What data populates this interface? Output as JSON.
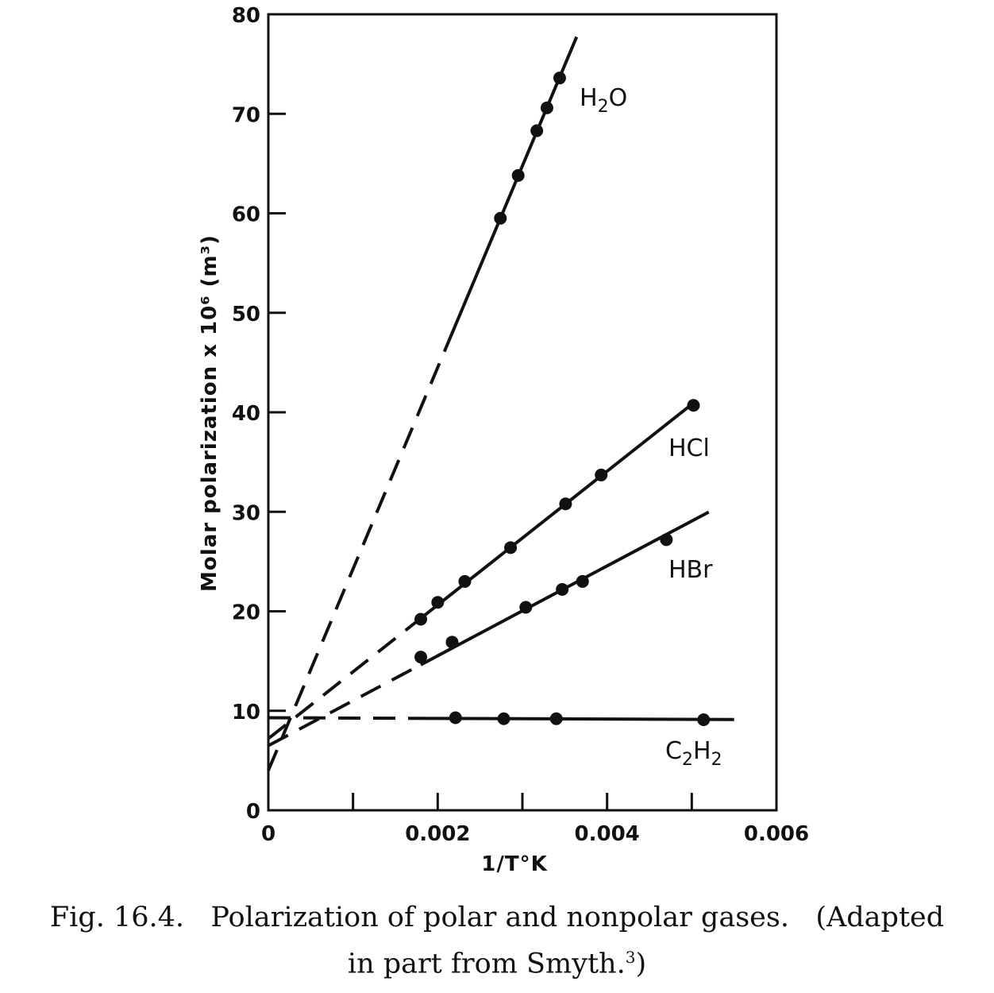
{
  "chart_data": {
    "type": "line",
    "xlabel": "1/T°K",
    "ylabel": "Molar polarization x 10⁶ (m³)",
    "xlim": [
      0,
      0.006
    ],
    "ylim": [
      0,
      80
    ],
    "x_ticks": [
      0,
      0.001,
      0.002,
      0.003,
      0.004,
      0.005,
      0.006
    ],
    "x_tick_labels": [
      "0",
      "",
      "0.002",
      "",
      "0.004",
      "",
      "0.006"
    ],
    "y_ticks": [
      0,
      10,
      20,
      30,
      40,
      50,
      60,
      70,
      80
    ],
    "y_tick_labels": [
      "0",
      "10",
      "20",
      "30",
      "40",
      "50",
      "60",
      "70",
      "80"
    ],
    "grid": false,
    "series": [
      {
        "name": "H2O",
        "label_main": "H",
        "label_sub": "2",
        "label_tail": "O",
        "intercept": 4.0,
        "dashed_range": [
          0,
          0.0021
        ],
        "solid_range": [
          0.0021,
          0.00364
        ],
        "points": [
          [
            0.00274,
            59.5
          ],
          [
            0.00295,
            63.8
          ],
          [
            0.00317,
            68.3
          ],
          [
            0.00329,
            70.6
          ],
          [
            0.00344,
            73.6
          ]
        ]
      },
      {
        "name": "HCl",
        "label_main": "HCl",
        "intercept": 7.2,
        "dashed_range": [
          0,
          0.0018
        ],
        "solid_range": [
          0.0018,
          0.00505
        ],
        "points": [
          [
            0.0018,
            19.2
          ],
          [
            0.002,
            20.9
          ],
          [
            0.00232,
            23.0
          ],
          [
            0.00286,
            26.4
          ],
          [
            0.00351,
            30.8
          ],
          [
            0.00393,
            33.7
          ],
          [
            0.00502,
            40.7
          ]
        ]
      },
      {
        "name": "HBr",
        "label_main": "HBr",
        "intercept": 6.5,
        "dashed_range": [
          0,
          0.0018
        ],
        "solid_range": [
          0.0018,
          0.0052
        ],
        "points": [
          [
            0.0018,
            15.4
          ],
          [
            0.00217,
            16.9
          ],
          [
            0.00304,
            20.4
          ],
          [
            0.00347,
            22.2
          ],
          [
            0.00371,
            23.0
          ],
          [
            0.0047,
            27.2
          ]
        ]
      },
      {
        "name": "C2H2",
        "label_main": "C",
        "label_sub": "2",
        "label_tail": "H",
        "label_sub2": "2",
        "intercept": 9.3,
        "dashed_range": [
          0,
          0.00165
        ],
        "solid_range": [
          0.00165,
          0.0055
        ],
        "points": [
          [
            0.00221,
            9.3
          ],
          [
            0.00278,
            9.2
          ],
          [
            0.0034,
            9.2
          ],
          [
            0.00514,
            9.1
          ]
        ]
      }
    ]
  },
  "caption": {
    "line1": "Fig. 16.4.   Polarization of polar and nonpolar gases.   (Adapted",
    "line2_text": "in part from Smyth.",
    "line2_sup": "3",
    "line2_close": ")"
  }
}
